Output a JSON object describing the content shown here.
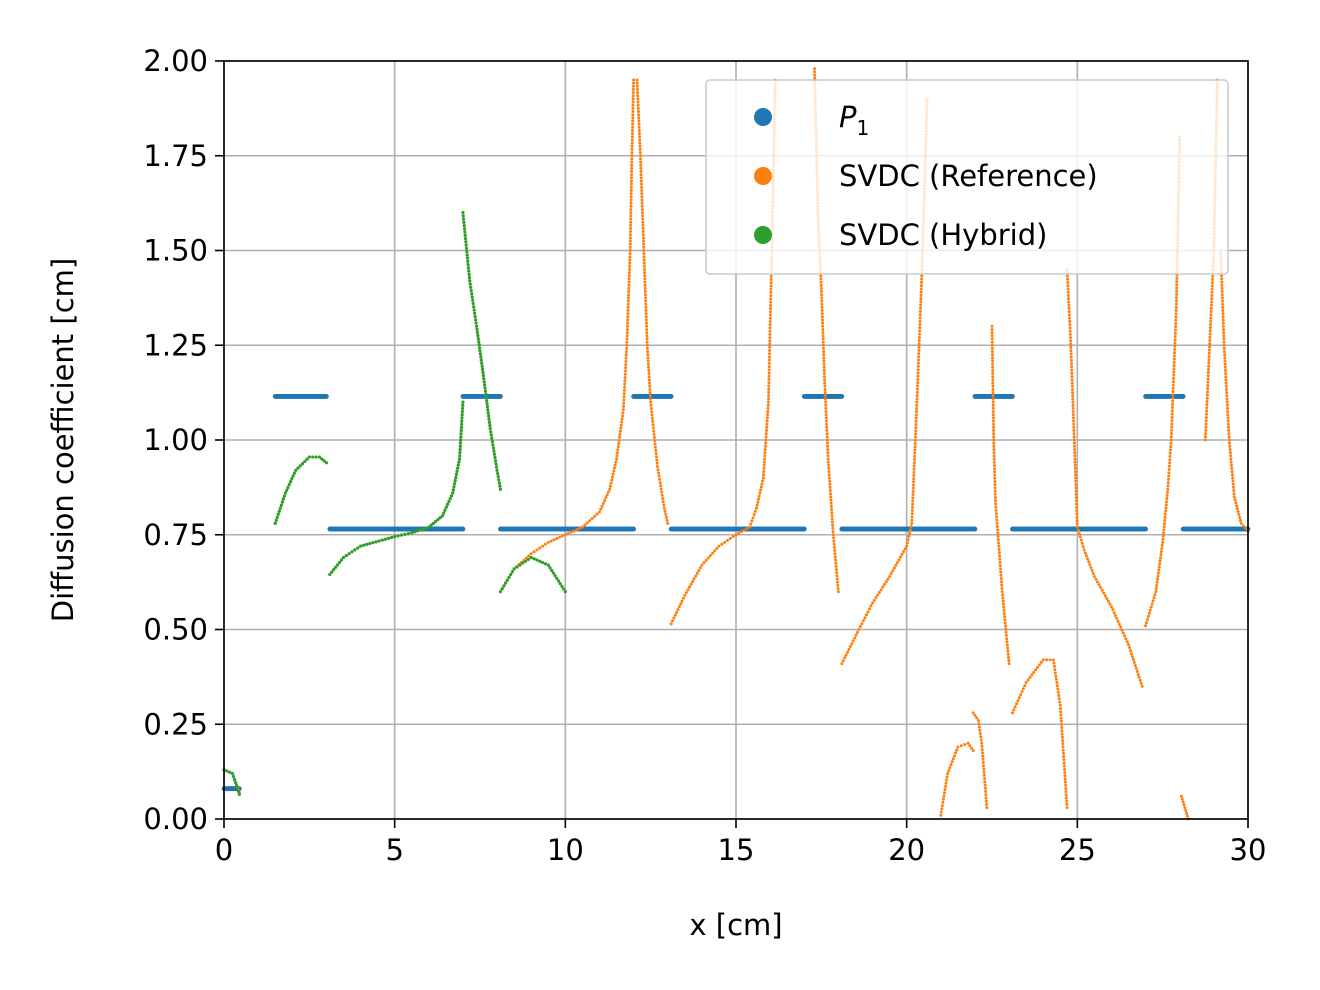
{
  "chart_data": {
    "type": "scatter",
    "title": "",
    "xlabel": "x [cm]",
    "ylabel": "Diffusion coefficient [cm]",
    "xlim": [
      0,
      30
    ],
    "ylim": [
      0,
      2.0
    ],
    "xticks": [
      "0",
      "5",
      "10",
      "15",
      "20",
      "25",
      "30"
    ],
    "yticks": [
      "0.00",
      "0.25",
      "0.50",
      "0.75",
      "1.00",
      "1.25",
      "1.50",
      "1.75",
      "2.00"
    ],
    "grid": true,
    "legend_position": "top-right",
    "series": [
      {
        "name": "P",
        "subscript": "1",
        "color": "#1f77b4",
        "description": "piecewise constant segments",
        "segments": [
          {
            "x": [
              0.0,
              0.45
            ],
            "y": 0.08
          },
          {
            "x": [
              1.5,
              3.0
            ],
            "y": 1.115
          },
          {
            "x": [
              3.1,
              7.0
            ],
            "y": 0.765
          },
          {
            "x": [
              7.0,
              8.1
            ],
            "y": 1.115
          },
          {
            "x": [
              8.1,
              12.0
            ],
            "y": 0.765
          },
          {
            "x": [
              12.0,
              13.1
            ],
            "y": 1.115
          },
          {
            "x": [
              13.1,
              17.0
            ],
            "y": 0.765
          },
          {
            "x": [
              17.0,
              18.1
            ],
            "y": 1.115
          },
          {
            "x": [
              18.1,
              22.0
            ],
            "y": 0.765
          },
          {
            "x": [
              22.0,
              23.1
            ],
            "y": 1.115
          },
          {
            "x": [
              23.1,
              27.0
            ],
            "y": 0.765
          },
          {
            "x": [
              27.0,
              28.1
            ],
            "y": 1.115
          },
          {
            "x": [
              28.1,
              30.0
            ],
            "y": 0.765
          }
        ]
      },
      {
        "name": "SVDC (Reference)",
        "color": "#ff7f0e",
        "curves": [
          [
            [
              0.0,
              0.13
            ],
            [
              0.25,
              0.12
            ],
            [
              0.45,
              0.07
            ]
          ],
          [
            [
              1.5,
              0.78
            ],
            [
              1.8,
              0.86
            ],
            [
              2.1,
              0.92
            ],
            [
              2.5,
              0.955
            ],
            [
              2.8,
              0.955
            ],
            [
              3.0,
              0.94
            ]
          ],
          [
            [
              3.1,
              0.645
            ],
            [
              3.5,
              0.69
            ],
            [
              4.0,
              0.72
            ],
            [
              5.0,
              0.745
            ],
            [
              5.5,
              0.755
            ],
            [
              6.0,
              0.77
            ],
            [
              6.4,
              0.8
            ],
            [
              6.7,
              0.86
            ],
            [
              6.9,
              0.95
            ],
            [
              7.0,
              1.1
            ]
          ],
          [
            [
              7.0,
              1.6
            ],
            [
              7.2,
              1.42
            ],
            [
              7.4,
              1.3
            ],
            [
              7.6,
              1.17
            ],
            [
              7.8,
              1.03
            ],
            [
              8.0,
              0.92
            ],
            [
              8.1,
              0.87
            ]
          ],
          [
            [
              8.1,
              0.6
            ],
            [
              8.5,
              0.66
            ],
            [
              9.0,
              0.69
            ],
            [
              9.5,
              0.67
            ],
            [
              10.0,
              0.6
            ]
          ],
          [
            [
              8.1,
              0.6
            ],
            [
              8.5,
              0.66
            ],
            [
              9.0,
              0.7
            ],
            [
              9.5,
              0.73
            ],
            [
              10.0,
              0.75
            ],
            [
              10.5,
              0.77
            ],
            [
              11.0,
              0.81
            ],
            [
              11.3,
              0.87
            ],
            [
              11.5,
              0.95
            ],
            [
              11.7,
              1.08
            ],
            [
              11.8,
              1.25
            ],
            [
              11.9,
              1.5
            ],
            [
              11.95,
              1.75
            ],
            [
              12.0,
              1.95
            ]
          ],
          [
            [
              12.1,
              1.95
            ],
            [
              12.2,
              1.75
            ],
            [
              12.3,
              1.5
            ],
            [
              12.4,
              1.25
            ],
            [
              12.5,
              1.1
            ],
            [
              12.7,
              0.93
            ],
            [
              12.9,
              0.82
            ],
            [
              13.0,
              0.78
            ]
          ],
          [
            [
              13.1,
              0.515
            ],
            [
              13.5,
              0.59
            ],
            [
              14.0,
              0.67
            ],
            [
              14.5,
              0.72
            ],
            [
              15.0,
              0.75
            ],
            [
              15.4,
              0.77
            ],
            [
              15.6,
              0.82
            ],
            [
              15.8,
              0.9
            ],
            [
              15.95,
              1.1
            ],
            [
              16.05,
              1.5
            ],
            [
              16.15,
              1.95
            ]
          ],
          [
            [
              17.3,
              1.98
            ],
            [
              17.4,
              1.6
            ],
            [
              17.5,
              1.4
            ],
            [
              17.6,
              1.15
            ],
            [
              17.7,
              0.95
            ],
            [
              17.85,
              0.75
            ],
            [
              18.0,
              0.6
            ]
          ],
          [
            [
              18.1,
              0.41
            ],
            [
              18.6,
              0.5
            ],
            [
              19.0,
              0.57
            ],
            [
              19.5,
              0.64
            ],
            [
              20.0,
              0.72
            ],
            [
              20.15,
              0.78
            ],
            [
              20.3,
              1.1
            ],
            [
              20.45,
              1.45
            ],
            [
              20.6,
              1.9
            ]
          ],
          [
            [
              21.0,
              0.01
            ],
            [
              21.2,
              0.12
            ],
            [
              21.5,
              0.19
            ],
            [
              21.8,
              0.2
            ],
            [
              21.95,
              0.18
            ]
          ],
          [
            [
              21.95,
              0.28
            ],
            [
              22.1,
              0.26
            ],
            [
              22.2,
              0.2
            ],
            [
              22.35,
              0.03
            ]
          ],
          [
            [
              22.5,
              1.3
            ],
            [
              22.55,
              1.0
            ],
            [
              22.6,
              0.84
            ],
            [
              22.7,
              0.72
            ],
            [
              22.8,
              0.6
            ],
            [
              23.0,
              0.41
            ]
          ],
          [
            [
              23.1,
              0.28
            ],
            [
              23.5,
              0.36
            ],
            [
              24.0,
              0.42
            ],
            [
              24.3,
              0.42
            ],
            [
              24.5,
              0.3
            ],
            [
              24.7,
              0.03
            ]
          ],
          [
            [
              24.7,
              1.45
            ],
            [
              24.8,
              1.27
            ],
            [
              24.85,
              1.15
            ],
            [
              24.95,
              0.9
            ],
            [
              25.0,
              0.77
            ],
            [
              25.2,
              0.71
            ],
            [
              25.5,
              0.64
            ],
            [
              26.0,
              0.56
            ],
            [
              26.5,
              0.46
            ],
            [
              26.9,
              0.35
            ]
          ],
          [
            [
              27.0,
              0.51
            ],
            [
              27.3,
              0.6
            ],
            [
              27.5,
              0.73
            ],
            [
              27.65,
              0.87
            ],
            [
              27.75,
              1.0
            ],
            [
              27.9,
              1.35
            ],
            [
              28.0,
              1.8
            ]
          ],
          [
            [
              28.05,
              0.06
            ],
            [
              28.15,
              0.03
            ],
            [
              28.25,
              0.0
            ]
          ],
          [
            [
              28.75,
              1.0
            ],
            [
              29.0,
              1.5
            ],
            [
              29.1,
              1.95
            ]
          ],
          [
            [
              29.2,
              1.5
            ],
            [
              29.3,
              1.25
            ],
            [
              29.45,
              1.0
            ],
            [
              29.6,
              0.85
            ],
            [
              29.8,
              0.78
            ],
            [
              30.0,
              0.76
            ]
          ]
        ]
      },
      {
        "name": "SVDC (Hybrid)",
        "color": "#2ca02c",
        "curves": [
          [
            [
              0.0,
              0.13
            ],
            [
              0.25,
              0.12
            ],
            [
              0.45,
              0.065
            ]
          ],
          [
            [
              1.5,
              0.78
            ],
            [
              1.8,
              0.86
            ],
            [
              2.1,
              0.92
            ],
            [
              2.5,
              0.955
            ],
            [
              2.8,
              0.955
            ],
            [
              3.0,
              0.94
            ]
          ],
          [
            [
              3.1,
              0.645
            ],
            [
              3.5,
              0.69
            ],
            [
              4.0,
              0.72
            ],
            [
              5.0,
              0.745
            ],
            [
              5.5,
              0.755
            ],
            [
              6.0,
              0.77
            ],
            [
              6.4,
              0.8
            ],
            [
              6.7,
              0.86
            ],
            [
              6.9,
              0.95
            ],
            [
              7.0,
              1.1
            ]
          ],
          [
            [
              7.0,
              1.6
            ],
            [
              7.2,
              1.42
            ],
            [
              7.4,
              1.3
            ],
            [
              7.6,
              1.17
            ],
            [
              7.8,
              1.03
            ],
            [
              8.0,
              0.92
            ],
            [
              8.1,
              0.87
            ]
          ],
          [
            [
              8.1,
              0.6
            ],
            [
              8.5,
              0.66
            ],
            [
              9.0,
              0.69
            ],
            [
              9.5,
              0.67
            ],
            [
              10.0,
              0.6
            ]
          ]
        ]
      }
    ]
  }
}
